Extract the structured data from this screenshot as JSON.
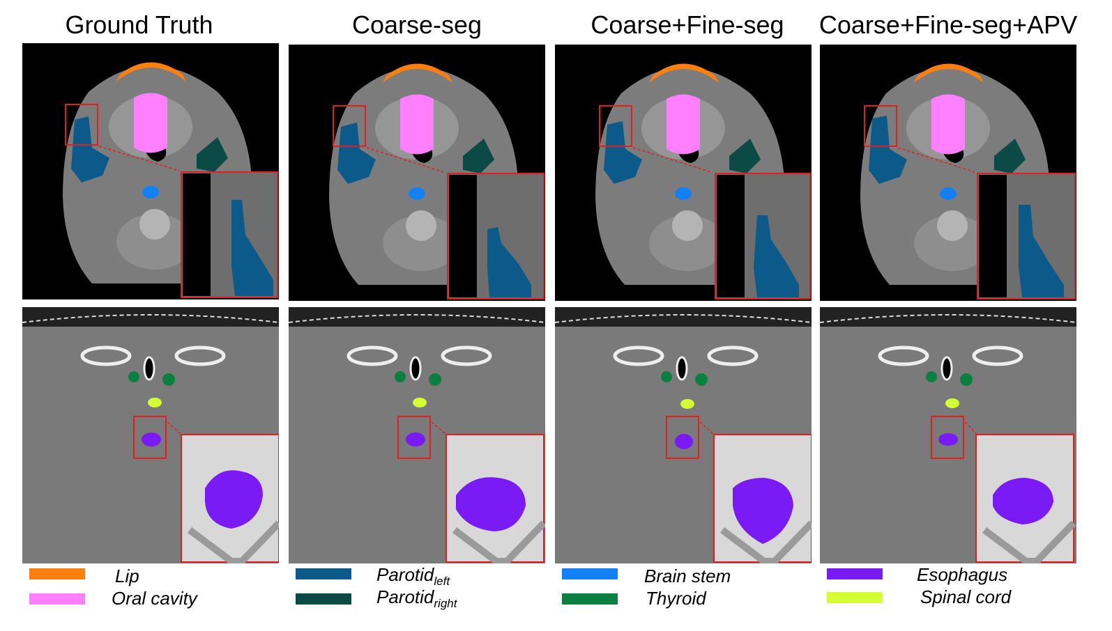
{
  "columns": [
    {
      "title": "Ground Truth"
    },
    {
      "title": "Coarse-seg"
    },
    {
      "title": "Coarse+Fine-seg"
    },
    {
      "title": "Coarse+Fine-seg+APV"
    }
  ],
  "legend": {
    "lip": {
      "label": "Lip",
      "color": "#ff7f0e"
    },
    "oral_cavity": {
      "label": "Oral cavity",
      "color": "#ff80ff"
    },
    "parotid_left": {
      "label": "Parotid",
      "sub": "left",
      "color": "#0b5a8a"
    },
    "parotid_right": {
      "label": "Parotid",
      "sub": "right",
      "color": "#0b4a45"
    },
    "brain_stem": {
      "label": "Brain stem",
      "color": "#1480f5"
    },
    "thyroid": {
      "label": "Thyroid",
      "color": "#0a8040"
    },
    "esophagus": {
      "label": "Esophagus",
      "color": "#7a1af5"
    },
    "spinal_cord": {
      "label": "Spinal cord",
      "color": "#d4ff33"
    }
  },
  "colors": {
    "zoom_box": "#e02020",
    "ct_background": "#000000"
  }
}
